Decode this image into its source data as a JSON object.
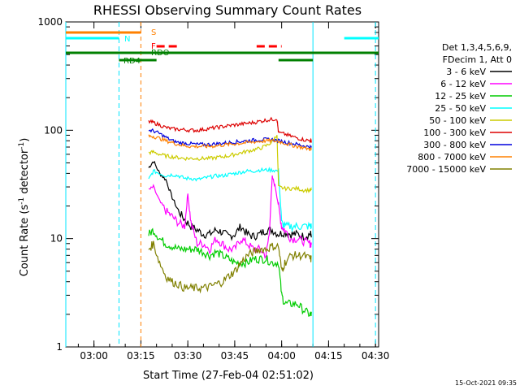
{
  "chart_data": {
    "type": "line",
    "title": "RHESSI Observing Summary Count Rates",
    "xlabel": "Start Time (27-Feb-04 02:51:02)",
    "ylabel_parts": [
      "Count Rate (s",
      "-1",
      " detector",
      "-1",
      ")"
    ],
    "yscale": "log",
    "ylim": [
      1,
      1000
    ],
    "xlim_minutes": [
      0,
      100
    ],
    "x_ticks": [
      {
        "minute": 9,
        "label": "03:00"
      },
      {
        "minute": 24,
        "label": "03:15"
      },
      {
        "minute": 39,
        "label": "03:30"
      },
      {
        "minute": 54,
        "label": "03:45"
      },
      {
        "minute": 69,
        "label": "04:00"
      },
      {
        "minute": 84,
        "label": "04:15"
      },
      {
        "minute": 99,
        "label": "04:30"
      }
    ],
    "y_ticks": [
      {
        "value": 1,
        "label": "1"
      },
      {
        "value": 10,
        "label": "10"
      },
      {
        "value": 100,
        "label": "100"
      },
      {
        "value": 1000,
        "label": "1000"
      }
    ],
    "legend_title": [
      "Det 1,3,4,5,6,9,",
      "FDecim 1, Att 0"
    ],
    "series": [
      {
        "name": "3 - 6 keV",
        "color": "#000000",
        "points": [
          [
            26.5,
            45
          ],
          [
            28,
            52
          ],
          [
            30,
            40
          ],
          [
            32,
            35
          ],
          [
            34,
            24
          ],
          [
            36,
            18
          ],
          [
            38,
            15
          ],
          [
            40,
            13
          ],
          [
            42,
            12
          ],
          [
            44,
            11
          ],
          [
            46,
            11
          ],
          [
            48,
            12
          ],
          [
            50,
            11.5
          ],
          [
            52,
            10.5
          ],
          [
            54,
            11
          ],
          [
            56,
            13
          ],
          [
            58,
            11
          ],
          [
            60,
            10.5
          ],
          [
            62,
            11
          ],
          [
            64,
            12
          ],
          [
            66,
            12
          ],
          [
            68,
            11
          ],
          [
            70,
            11.5
          ],
          [
            72,
            11
          ],
          [
            74,
            11
          ],
          [
            76,
            10.5
          ],
          [
            78,
            11
          ],
          [
            78.5,
            11
          ]
        ]
      },
      {
        "name": "6 - 12 keV",
        "color": "#ff00ff",
        "points": [
          [
            26.5,
            28
          ],
          [
            28,
            30
          ],
          [
            30,
            22
          ],
          [
            32,
            18
          ],
          [
            34,
            16
          ],
          [
            36,
            14
          ],
          [
            38,
            13
          ],
          [
            39,
            26
          ],
          [
            40,
            14
          ],
          [
            42,
            9
          ],
          [
            44,
            9
          ],
          [
            46,
            8
          ],
          [
            48,
            10
          ],
          [
            50,
            9
          ],
          [
            52,
            8
          ],
          [
            54,
            8
          ],
          [
            56,
            10
          ],
          [
            58,
            9
          ],
          [
            60,
            8
          ],
          [
            62,
            8
          ],
          [
            64,
            7
          ],
          [
            65,
            11
          ],
          [
            66,
            37
          ],
          [
            67,
            30
          ],
          [
            68,
            20
          ],
          [
            69,
            13
          ],
          [
            70,
            12
          ],
          [
            72,
            10
          ],
          [
            74,
            10
          ],
          [
            76,
            9.5
          ],
          [
            78,
            9
          ],
          [
            78.5,
            9
          ]
        ]
      },
      {
        "name": "12 - 25 keV",
        "color": "#00cc00",
        "points": [
          [
            26.5,
            11
          ],
          [
            28,
            12
          ],
          [
            30,
            10
          ],
          [
            32,
            9
          ],
          [
            34,
            8.5
          ],
          [
            36,
            8
          ],
          [
            38,
            8
          ],
          [
            40,
            8
          ],
          [
            42,
            8
          ],
          [
            44,
            7.5
          ],
          [
            46,
            7
          ],
          [
            48,
            7.5
          ],
          [
            50,
            7
          ],
          [
            52,
            6.5
          ],
          [
            54,
            6
          ],
          [
            56,
            6
          ],
          [
            58,
            6
          ],
          [
            60,
            6.5
          ],
          [
            62,
            6.5
          ],
          [
            64,
            6.5
          ],
          [
            66,
            6
          ],
          [
            68,
            6
          ],
          [
            69,
            3
          ],
          [
            70,
            2.5
          ],
          [
            72,
            2.5
          ],
          [
            74,
            2.5
          ],
          [
            76,
            2.2
          ],
          [
            78,
            2
          ],
          [
            78.5,
            2
          ]
        ]
      },
      {
        "name": "25 - 50 keV",
        "color": "#00ffff",
        "points": [
          [
            26.5,
            35
          ],
          [
            28,
            42
          ],
          [
            30,
            40
          ],
          [
            32,
            38
          ],
          [
            34,
            39
          ],
          [
            36,
            38
          ],
          [
            38,
            36
          ],
          [
            40,
            36
          ],
          [
            42,
            35
          ],
          [
            44,
            36
          ],
          [
            46,
            37
          ],
          [
            48,
            38
          ],
          [
            50,
            38
          ],
          [
            52,
            39
          ],
          [
            54,
            40
          ],
          [
            56,
            41
          ],
          [
            58,
            42
          ],
          [
            60,
            42
          ],
          [
            62,
            43
          ],
          [
            64,
            43
          ],
          [
            66,
            43
          ],
          [
            68,
            42
          ],
          [
            69,
            14
          ],
          [
            70,
            13
          ],
          [
            72,
            13
          ],
          [
            74,
            13
          ],
          [
            76,
            13
          ],
          [
            78,
            13
          ],
          [
            78.5,
            13
          ]
        ]
      },
      {
        "name": "50 - 100 keV",
        "color": "#cccc00",
        "points": [
          [
            26.5,
            62
          ],
          [
            28,
            63
          ],
          [
            30,
            60
          ],
          [
            32,
            58
          ],
          [
            34,
            57
          ],
          [
            36,
            56
          ],
          [
            38,
            55
          ],
          [
            40,
            55
          ],
          [
            42,
            55
          ],
          [
            44,
            55
          ],
          [
            46,
            55
          ],
          [
            48,
            56
          ],
          [
            50,
            57
          ],
          [
            52,
            58
          ],
          [
            54,
            60
          ],
          [
            56,
            62
          ],
          [
            58,
            64
          ],
          [
            60,
            66
          ],
          [
            62,
            68
          ],
          [
            64,
            72
          ],
          [
            66,
            78
          ],
          [
            67.5,
            92
          ],
          [
            68,
            30
          ],
          [
            70,
            29
          ],
          [
            72,
            29
          ],
          [
            74,
            29
          ],
          [
            76,
            28
          ],
          [
            78,
            28
          ],
          [
            78.5,
            28
          ]
        ]
      },
      {
        "name": "100 - 300 keV",
        "color": "#dd0000",
        "points": [
          [
            26.5,
            120
          ],
          [
            28,
            118
          ],
          [
            30,
            112
          ],
          [
            32,
            106
          ],
          [
            34,
            103
          ],
          [
            36,
            102
          ],
          [
            38,
            101
          ],
          [
            40,
            100
          ],
          [
            42,
            100
          ],
          [
            44,
            102
          ],
          [
            46,
            104
          ],
          [
            48,
            106
          ],
          [
            50,
            108
          ],
          [
            52,
            110
          ],
          [
            54,
            112
          ],
          [
            56,
            114
          ],
          [
            58,
            116
          ],
          [
            60,
            118
          ],
          [
            62,
            121
          ],
          [
            64,
            124
          ],
          [
            66,
            126
          ],
          [
            67.5,
            128
          ],
          [
            68,
            95
          ],
          [
            70,
            92
          ],
          [
            72,
            88
          ],
          [
            74,
            85
          ],
          [
            76,
            82
          ],
          [
            78,
            80
          ],
          [
            78.5,
            80
          ]
        ]
      },
      {
        "name": "300 - 800 keV",
        "color": "#0000dd",
        "points": [
          [
            26.5,
            100
          ],
          [
            28,
            99
          ],
          [
            30,
            93
          ],
          [
            32,
            86
          ],
          [
            34,
            80
          ],
          [
            36,
            77
          ],
          [
            38,
            76
          ],
          [
            40,
            75
          ],
          [
            42,
            74
          ],
          [
            44,
            74
          ],
          [
            46,
            74
          ],
          [
            48,
            75
          ],
          [
            50,
            76
          ],
          [
            52,
            77
          ],
          [
            54,
            78
          ],
          [
            56,
            79
          ],
          [
            58,
            80
          ],
          [
            60,
            81
          ],
          [
            62,
            82
          ],
          [
            64,
            82
          ],
          [
            66,
            82
          ],
          [
            68,
            80
          ],
          [
            70,
            78
          ],
          [
            72,
            76
          ],
          [
            74,
            74
          ],
          [
            76,
            72
          ],
          [
            78,
            70
          ],
          [
            78.5,
            70
          ]
        ]
      },
      {
        "name": "800 - 7000 keV",
        "color": "#ff8000",
        "points": [
          [
            26.5,
            88
          ],
          [
            28,
            88
          ],
          [
            30,
            84
          ],
          [
            32,
            80
          ],
          [
            34,
            77
          ],
          [
            36,
            74
          ],
          [
            38,
            72
          ],
          [
            40,
            71
          ],
          [
            42,
            71
          ],
          [
            44,
            71
          ],
          [
            46,
            71
          ],
          [
            48,
            72
          ],
          [
            50,
            73
          ],
          [
            52,
            74
          ],
          [
            54,
            75
          ],
          [
            56,
            76
          ],
          [
            58,
            77
          ],
          [
            60,
            78
          ],
          [
            62,
            79
          ],
          [
            64,
            80
          ],
          [
            66,
            80
          ],
          [
            68,
            79
          ],
          [
            70,
            76
          ],
          [
            72,
            73
          ],
          [
            74,
            71
          ],
          [
            76,
            69
          ],
          [
            78,
            67
          ],
          [
            78.5,
            67
          ]
        ]
      },
      {
        "name": "7000 - 15000 keV",
        "color": "#808000",
        "points": [
          [
            26.5,
            8
          ],
          [
            28,
            9
          ],
          [
            30,
            6
          ],
          [
            32,
            4.5
          ],
          [
            34,
            4
          ],
          [
            36,
            3.8
          ],
          [
            38,
            3.5
          ],
          [
            40,
            3.5
          ],
          [
            42,
            3.5
          ],
          [
            44,
            3.5
          ],
          [
            46,
            3.6
          ],
          [
            48,
            3.8
          ],
          [
            50,
            4
          ],
          [
            52,
            4.5
          ],
          [
            54,
            5
          ],
          [
            56,
            6
          ],
          [
            58,
            7
          ],
          [
            60,
            7.5
          ],
          [
            62,
            8
          ],
          [
            64,
            8
          ],
          [
            66,
            8.5
          ],
          [
            68,
            8.5
          ],
          [
            69,
            5
          ],
          [
            70,
            6
          ],
          [
            72,
            7
          ],
          [
            74,
            7
          ],
          [
            76,
            7
          ],
          [
            78,
            6.5
          ],
          [
            78.5,
            6.5
          ]
        ]
      }
    ],
    "flags": [
      {
        "label": "S",
        "color": "#ff8000",
        "spans": [
          [
            0,
            24
          ]
        ]
      },
      {
        "label": "N",
        "color": "#00ffff",
        "spans": [
          [
            0,
            17
          ],
          [
            89,
            100
          ]
        ]
      },
      {
        "label": "F",
        "color": "#ff0000",
        "spans": [
          [
            29,
            36
          ],
          [
            61,
            69
          ]
        ]
      },
      {
        "label": "RDO",
        "color": "#008000",
        "spans": [
          [
            0,
            100
          ]
        ]
      },
      {
        "label": "RD4",
        "color": "#008000",
        "spans": [
          [
            17,
            29
          ],
          [
            68,
            79
          ]
        ]
      }
    ],
    "vlines_cyan_minutes": [
      0,
      17,
      79,
      99
    ],
    "vline_orange_minute": 24,
    "timestamp": "15-Oct-2021 09:35"
  }
}
